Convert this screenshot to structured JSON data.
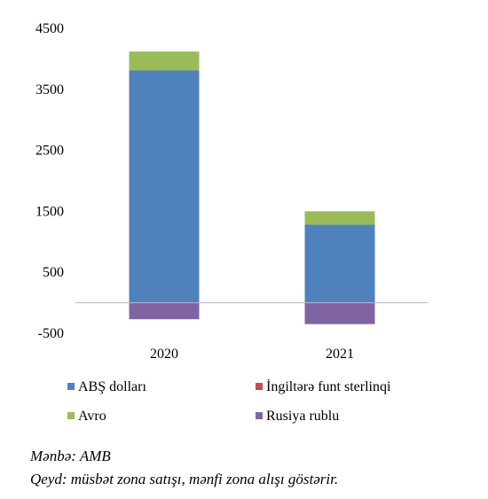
{
  "chart_data": {
    "type": "bar",
    "stacked": true,
    "categories": [
      "2020",
      "2021"
    ],
    "series": [
      {
        "name": "ABŞ dolları",
        "color": "#4f81bd",
        "values": [
          3810,
          1280
        ]
      },
      {
        "name": "İngiltərə funt sterlinqi",
        "color": "#c0504d",
        "values": [
          0,
          0
        ]
      },
      {
        "name": "Avro",
        "color": "#9bbb59",
        "values": [
          310,
          220
        ]
      },
      {
        "name": "Rusiya rublu",
        "color": "#8064a2",
        "values": [
          -270,
          -350
        ]
      }
    ],
    "yticks": [
      "4500",
      "3500",
      "2500",
      "1500",
      "500",
      "-500"
    ],
    "ytick_values": [
      4500,
      3500,
      2500,
      1500,
      500,
      -500
    ],
    "ylim": [
      -500,
      4500
    ],
    "grid": false,
    "legend_position": "bottom"
  },
  "notes": {
    "source": "Mənbə: AMB",
    "remark": "Qeyd: müsbət zona satışı, mənfi zona alışı göstərir."
  }
}
